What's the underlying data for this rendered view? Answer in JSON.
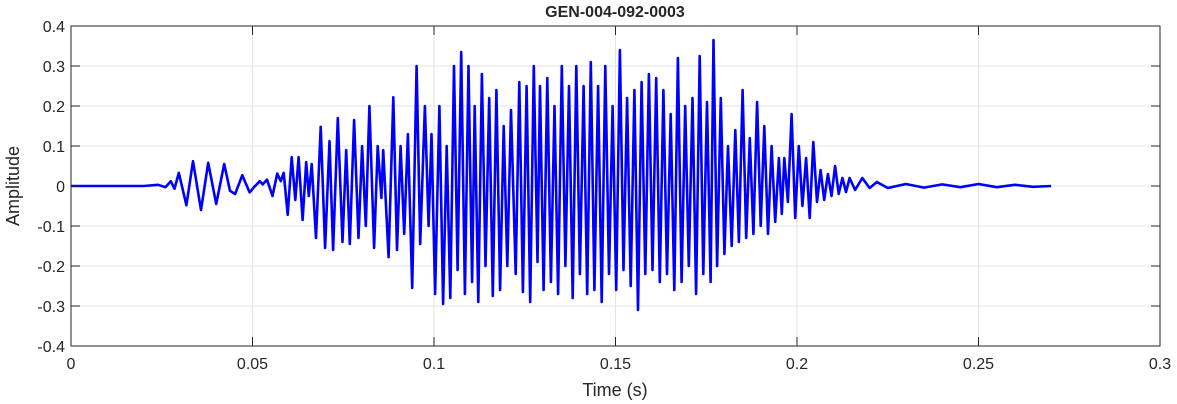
{
  "chart_data": {
    "type": "line",
    "title": "GEN-004-092-0003",
    "xlabel": "Time (s)",
    "ylabel": "Amplitude",
    "xlim": [
      0,
      0.3
    ],
    "ylim": [
      -0.4,
      0.4
    ],
    "xticks": [
      0,
      0.05,
      0.1,
      0.15,
      0.2,
      0.25,
      0.3
    ],
    "xtick_labels": [
      "0",
      "0.05",
      "0.1",
      "0.15",
      "0.2",
      "0.25",
      "0.3"
    ],
    "yticks": [
      -0.4,
      -0.3,
      -0.2,
      -0.1,
      0,
      0.1,
      0.2,
      0.3,
      0.4
    ],
    "ytick_labels": [
      "-0.4",
      "-0.3",
      "-0.2",
      "-0.1",
      "0",
      "0.1",
      "0.2",
      "0.3",
      "0.4"
    ],
    "grid": true,
    "line_color": "#0000FF",
    "series": [
      {
        "t": [
          0,
          0.02,
          0.024,
          0.026,
          0.0275,
          0.0285,
          0.0297,
          0.0318,
          0.0336,
          0.0358,
          0.0378,
          0.04,
          0.0422,
          0.0438,
          0.0452,
          0.0472,
          0.0492,
          0.0505,
          0.052,
          0.0528,
          0.054,
          0.0555,
          0.0568,
          0.0578,
          0.0586,
          0.0597,
          0.0608,
          0.0618,
          0.0627,
          0.0638,
          0.0648,
          0.0655,
          0.0663,
          0.0675,
          0.0688,
          0.07,
          0.0712,
          0.0722,
          0.0735,
          0.0748,
          0.0758,
          0.0768,
          0.078,
          0.0792,
          0.0802,
          0.0812,
          0.0822,
          0.0835,
          0.0845,
          0.0855,
          0.086,
          0.0875,
          0.0888,
          0.0898,
          0.0908,
          0.0918,
          0.0928,
          0.094,
          0.0952,
          0.0962,
          0.0975,
          0.0985,
          0.0993,
          0.1003,
          0.1015,
          0.1025,
          0.1035,
          0.1045,
          0.1055,
          0.1065,
          0.1075,
          0.1085,
          0.1095,
          0.1105,
          0.1112,
          0.1122,
          0.1132,
          0.1142,
          0.1152,
          0.1162,
          0.1172,
          0.1182,
          0.1192,
          0.1202,
          0.1212,
          0.1225,
          0.1235,
          0.1245,
          0.1255,
          0.1265,
          0.1275,
          0.1285,
          0.1292,
          0.1302,
          0.1312,
          0.1322,
          0.1332,
          0.1342,
          0.1352,
          0.1362,
          0.1372,
          0.1382,
          0.1392,
          0.1402,
          0.1412,
          0.1422,
          0.1432,
          0.1442,
          0.1452,
          0.1462,
          0.1472,
          0.1482,
          0.1492,
          0.1502,
          0.1512,
          0.1522,
          0.1532,
          0.1542,
          0.1552,
          0.1562,
          0.1572,
          0.1582,
          0.1592,
          0.1602,
          0.1612,
          0.1622,
          0.1632,
          0.1642,
          0.1652,
          0.1662,
          0.1672,
          0.1682,
          0.1692,
          0.1702,
          0.1712,
          0.1722,
          0.1732,
          0.1742,
          0.1752,
          0.1762,
          0.177,
          0.178,
          0.179,
          0.18,
          0.181,
          0.182,
          0.183,
          0.184,
          0.185,
          0.186,
          0.187,
          0.188,
          0.189,
          0.19,
          0.191,
          0.192,
          0.193,
          0.194,
          0.195,
          0.1958,
          0.1965,
          0.1975,
          0.1985,
          0.1995,
          0.2005,
          0.2015,
          0.2025,
          0.2035,
          0.2045,
          0.2055,
          0.2065,
          0.2075,
          0.2085,
          0.2095,
          0.2105,
          0.2115,
          0.2125,
          0.2135,
          0.2145,
          0.216,
          0.218,
          0.22,
          0.222,
          0.225,
          0.23,
          0.235,
          0.24,
          0.245,
          0.25,
          0.255,
          0.26,
          0.265,
          0.27
        ],
        "amplitude": [
          0,
          0,
          0.003,
          -0.003,
          0.012,
          -0.007,
          0.033,
          -0.048,
          0.062,
          -0.06,
          0.058,
          -0.045,
          0.055,
          -0.012,
          -0.02,
          0.027,
          -0.016,
          -0.002,
          0.012,
          0.004,
          0.016,
          -0.025,
          0.031,
          0.012,
          0.033,
          -0.072,
          0.072,
          -0.035,
          0.072,
          -0.085,
          0.06,
          -0.025,
          0.055,
          -0.13,
          0.148,
          -0.155,
          0.112,
          -0.16,
          0.17,
          -0.14,
          0.09,
          -0.145,
          0.165,
          -0.13,
          0.1,
          -0.1,
          0.2,
          -0.155,
          0.1,
          -0.03,
          0.09,
          -0.178,
          0.222,
          -0.16,
          0.1,
          -0.12,
          0.13,
          -0.255,
          0.3,
          -0.145,
          0.2,
          -0.1,
          0.13,
          -0.27,
          0.2,
          -0.295,
          0.1,
          -0.28,
          0.3,
          -0.21,
          0.335,
          -0.27,
          0.3,
          -0.24,
          0.2,
          -0.29,
          0.28,
          -0.2,
          0.22,
          -0.275,
          0.24,
          -0.26,
          0.15,
          -0.2,
          0.19,
          -0.22,
          0.26,
          -0.265,
          0.25,
          -0.29,
          0.3,
          -0.19,
          0.25,
          -0.26,
          0.27,
          -0.24,
          0.2,
          -0.27,
          0.3,
          -0.2,
          0.25,
          -0.28,
          0.3,
          -0.22,
          0.25,
          -0.27,
          0.31,
          -0.26,
          0.25,
          -0.29,
          0.3,
          -0.22,
          0.2,
          -0.26,
          0.34,
          -0.21,
          0.22,
          -0.25,
          0.24,
          -0.31,
          0.26,
          -0.22,
          0.28,
          -0.21,
          0.27,
          -0.24,
          0.24,
          -0.22,
          0.18,
          -0.26,
          0.32,
          -0.24,
          0.2,
          -0.2,
          0.22,
          -0.27,
          0.325,
          -0.22,
          0.21,
          -0.24,
          0.365,
          -0.2,
          0.22,
          -0.17,
          0.1,
          -0.15,
          0.14,
          -0.14,
          0.24,
          -0.13,
          0.12,
          -0.12,
          0.21,
          -0.1,
          0.15,
          -0.12,
          0.1,
          -0.09,
          0.07,
          -0.07,
          0.07,
          -0.04,
          0.18,
          -0.08,
          0.1,
          -0.05,
          0.07,
          -0.08,
          0.11,
          -0.04,
          0.04,
          -0.035,
          0.03,
          -0.025,
          0.05,
          -0.02,
          0.02,
          -0.015,
          0.02,
          -0.01,
          0.02,
          -0.005,
          0.01,
          -0.005,
          0.005,
          -0.004,
          0.004,
          -0.003,
          0.005,
          -0.003,
          0.003,
          -0.002,
          0
        ]
      }
    ]
  }
}
